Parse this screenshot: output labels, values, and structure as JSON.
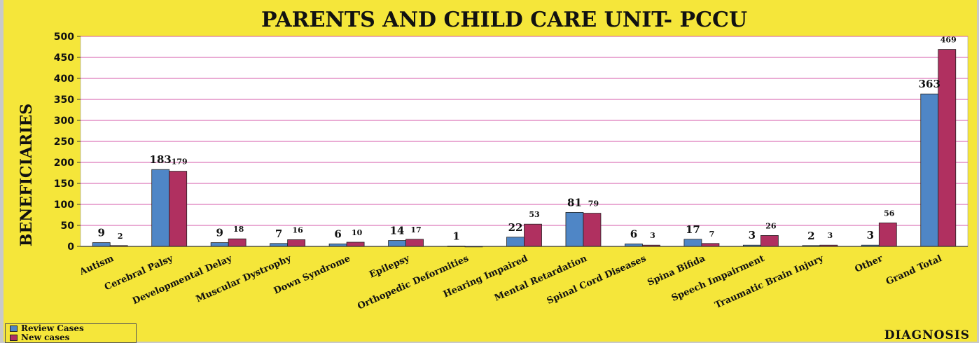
{
  "chart_data": {
    "type": "bar",
    "title": "PARENTS AND CHILD CARE UNIT- PCCU",
    "xlabel": "DIAGNOSIS",
    "ylabel": "BENEFICIARIES",
    "ylim": [
      0,
      500
    ],
    "yticks": [
      "0",
      "50",
      "100",
      "150",
      "200",
      "250",
      "300",
      "350",
      "400",
      "450",
      "500"
    ],
    "grid": true,
    "legend_position": "bottom-left",
    "categories": [
      "Autism",
      "Cerebral Palsy",
      "Developmental Delay",
      "Muscular Dystrophy",
      "Down Syndrome",
      "Epilepsy",
      "Orthopedic Deformities",
      "Hearing Impaired",
      "Mental Retardation",
      "Spinal Cord Diseases",
      "Spina Bifida",
      "Speech Impairment",
      "Traumatic Brain Injury",
      "Other",
      "Grand Total"
    ],
    "series": [
      {
        "name": "Review Cases",
        "color": "#4f86c6",
        "values": [
          9,
          183,
          9,
          7,
          6,
          14,
          1,
          22,
          81,
          6,
          17,
          3,
          2,
          3,
          363
        ]
      },
      {
        "name": "New cases",
        "color": "#b03060",
        "values": [
          2,
          179,
          18,
          16,
          10,
          17,
          0,
          53,
          79,
          3,
          7,
          26,
          3,
          56,
          469
        ]
      }
    ],
    "data_labels": [
      [
        "9",
        "183",
        "9",
        "7",
        "6",
        "14",
        "1",
        "22",
        "81",
        "6",
        "17",
        "3",
        "2",
        "3",
        "363"
      ],
      [
        "2",
        "179",
        "18",
        "16",
        "10",
        "17",
        "",
        "53",
        "79",
        "3",
        "7",
        "26",
        "3",
        "56",
        "469"
      ]
    ]
  }
}
